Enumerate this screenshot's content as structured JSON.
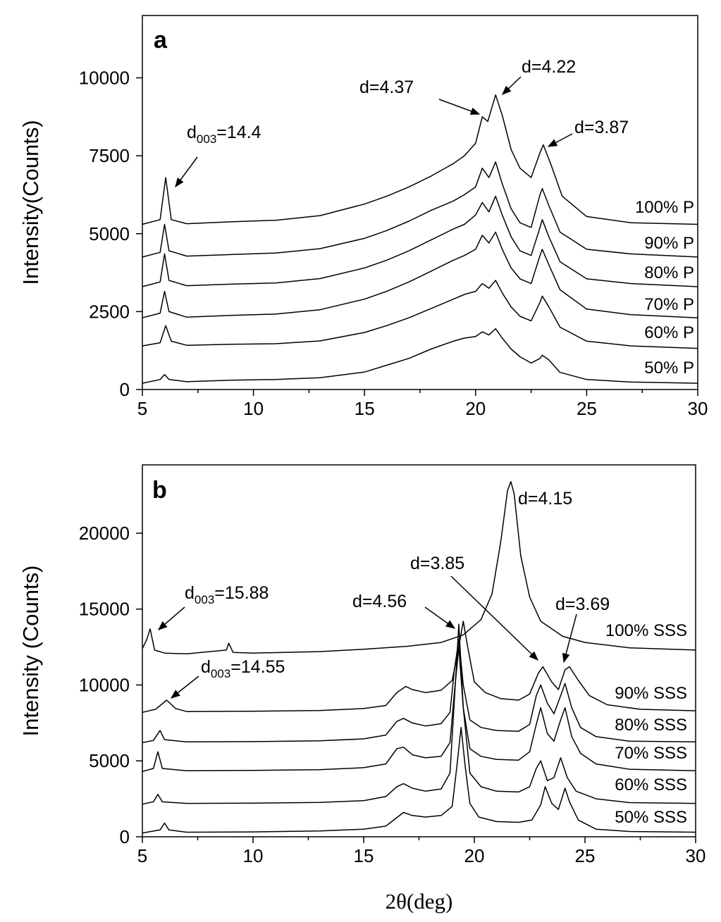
{
  "chart_data": [
    {
      "type": "line",
      "panel_label": "a",
      "ylabel": "Intensity(Counts)",
      "xlabel": "",
      "xlim": [
        5,
        30
      ],
      "ylim": [
        0,
        12000
      ],
      "xticks": [
        "5",
        "10",
        "15",
        "20",
        "25",
        "30"
      ],
      "yticks": [
        "0",
        "2500",
        "5000",
        "7500",
        "10000"
      ],
      "xtick_values": [
        5,
        10,
        15,
        20,
        25,
        30
      ],
      "ytick_values": [
        0,
        2500,
        5000,
        7500,
        10000
      ],
      "series": [
        {
          "name": "50% P",
          "x": [
            5,
            5.8,
            6.0,
            6.2,
            7,
            9,
            11,
            13,
            15,
            16,
            17,
            18,
            19,
            19.5,
            20,
            20.3,
            20.6,
            20.9,
            21.2,
            21.6,
            22,
            22.5,
            22.9,
            23.0,
            23.3,
            23.8,
            25,
            27,
            30
          ],
          "y": [
            200,
            320,
            480,
            320,
            250,
            300,
            320,
            380,
            560,
            780,
            1000,
            1300,
            1550,
            1650,
            1700,
            1850,
            1750,
            1950,
            1650,
            1300,
            1050,
            850,
            1000,
            1100,
            950,
            550,
            320,
            240,
            200
          ]
        },
        {
          "name": "60% P",
          "x": [
            5,
            5.8,
            6.05,
            6.3,
            7,
            9,
            11,
            13,
            15,
            16,
            17,
            18,
            19,
            19.5,
            20,
            20.3,
            20.6,
            20.9,
            21.2,
            21.6,
            22,
            22.5,
            22.9,
            23.0,
            23.3,
            23.8,
            25,
            27,
            30
          ],
          "y": [
            1400,
            1500,
            2050,
            1550,
            1420,
            1450,
            1470,
            1560,
            1830,
            2050,
            2300,
            2600,
            2900,
            3050,
            3150,
            3400,
            3250,
            3500,
            3100,
            2650,
            2350,
            2200,
            2800,
            3000,
            2650,
            2000,
            1550,
            1400,
            1320
          ]
        },
        {
          "name": "70% P",
          "x": [
            5,
            5.8,
            6.0,
            6.2,
            7,
            9,
            11,
            13,
            15,
            16,
            17,
            18,
            19,
            19.5,
            20,
            20.3,
            20.6,
            20.9,
            21.2,
            21.6,
            22,
            22.5,
            22.9,
            23.0,
            23.3,
            23.8,
            25,
            27,
            30
          ],
          "y": [
            2300,
            2450,
            3150,
            2500,
            2320,
            2380,
            2420,
            2560,
            2900,
            3150,
            3450,
            3800,
            4150,
            4300,
            4500,
            4950,
            4700,
            5050,
            4500,
            3900,
            3550,
            3400,
            4300,
            4500,
            4000,
            3200,
            2580,
            2400,
            2300
          ]
        },
        {
          "name": "80% P",
          "x": [
            5,
            5.8,
            6.0,
            6.2,
            7,
            9,
            11,
            13,
            15,
            16,
            17,
            18,
            19,
            19.5,
            20,
            20.3,
            20.6,
            20.9,
            21.2,
            21.6,
            22,
            22.5,
            22.9,
            23.0,
            23.3,
            23.8,
            25,
            27,
            30
          ],
          "y": [
            3300,
            3450,
            4350,
            3500,
            3330,
            3380,
            3420,
            3560,
            3900,
            4150,
            4450,
            4800,
            5150,
            5300,
            5600,
            6000,
            5700,
            6200,
            5600,
            4900,
            4450,
            4300,
            5200,
            5450,
            4900,
            4100,
            3550,
            3400,
            3300
          ]
        },
        {
          "name": "90% P",
          "x": [
            5,
            5.8,
            6.0,
            6.2,
            7,
            9,
            11,
            13,
            15,
            16,
            17,
            18,
            19,
            19.5,
            20,
            20.3,
            20.6,
            20.9,
            21.2,
            21.6,
            22,
            22.5,
            22.9,
            23.0,
            23.3,
            23.8,
            25,
            27,
            30
          ],
          "y": [
            4250,
            4400,
            5300,
            4450,
            4280,
            4330,
            4380,
            4520,
            4850,
            5100,
            5400,
            5750,
            6050,
            6250,
            6500,
            7100,
            6800,
            7300,
            6600,
            5800,
            5350,
            5200,
            6250,
            6450,
            5900,
            5050,
            4500,
            4350,
            4250
          ]
        },
        {
          "name": "100% P",
          "x": [
            5,
            5.8,
            6.05,
            6.3,
            7,
            9,
            11,
            13,
            15,
            16,
            17,
            18,
            19,
            19.5,
            20,
            20.3,
            20.55,
            20.9,
            21.2,
            21.6,
            22,
            22.5,
            22.9,
            23.05,
            23.4,
            23.9,
            25,
            27,
            30
          ],
          "y": [
            5300,
            5450,
            6800,
            5450,
            5320,
            5380,
            5430,
            5580,
            5950,
            6200,
            6500,
            6850,
            7250,
            7500,
            7900,
            8750,
            8600,
            9450,
            8800,
            7700,
            7100,
            6800,
            7600,
            7850,
            7200,
            6200,
            5550,
            5350,
            5300
          ]
        }
      ],
      "annotations": [
        {
          "text": "d",
          "sub": "003",
          "suffix": "=14.4",
          "x": 6.1
        },
        {
          "text": "d=4.37",
          "x": 20.4
        },
        {
          "text": "d=4.22",
          "x": 20.9
        },
        {
          "text": "d=3.87",
          "x": 23.0
        }
      ]
    },
    {
      "type": "line",
      "panel_label": "b",
      "ylabel": "Intensity (Counts)",
      "xlabel": "2θ(deg)",
      "xlim": [
        5,
        30
      ],
      "ylim": [
        0,
        24500
      ],
      "xticks": [
        "5",
        "10",
        "15",
        "20",
        "25",
        "30"
      ],
      "yticks": [
        "0",
        "5000",
        "10000",
        "15000",
        "20000"
      ],
      "xtick_values": [
        5,
        10,
        15,
        20,
        25,
        30
      ],
      "ytick_values": [
        0,
        5000,
        10000,
        15000,
        20000
      ],
      "series": [
        {
          "name": "50% SSS",
          "x": [
            5,
            5.8,
            6.0,
            6.2,
            7,
            10,
            13,
            15,
            16,
            16.8,
            17.2,
            17.8,
            18.5,
            19.0,
            19.2,
            19.4,
            19.6,
            19.8,
            20.2,
            21,
            22,
            22.6,
            23.0,
            23.2,
            23.5,
            23.8,
            24.1,
            24.3,
            24.7,
            25.5,
            27,
            30
          ],
          "y": [
            250,
            450,
            900,
            450,
            300,
            320,
            380,
            500,
            700,
            1600,
            1400,
            1300,
            1400,
            2000,
            4500,
            7200,
            4500,
            2200,
            1300,
            1000,
            950,
            1100,
            2100,
            3300,
            2200,
            1800,
            3200,
            2300,
            1100,
            500,
            350,
            300
          ]
        },
        {
          "name": "60% SSS",
          "x": [
            5,
            5.5,
            5.7,
            5.9,
            7,
            10,
            13,
            15,
            16,
            16.5,
            16.8,
            17.2,
            17.8,
            18.5,
            18.9,
            19.1,
            19.3,
            19.5,
            19.8,
            20.3,
            21,
            22,
            22.5,
            22.8,
            23.0,
            23.3,
            23.6,
            23.9,
            24.2,
            24.6,
            25.5,
            27,
            30
          ],
          "y": [
            2150,
            2300,
            2800,
            2300,
            2200,
            2220,
            2260,
            2380,
            2650,
            3300,
            3500,
            3200,
            3000,
            3150,
            4200,
            9000,
            14000,
            8500,
            4200,
            3300,
            3000,
            2950,
            3300,
            4500,
            5000,
            3700,
            3900,
            5200,
            3900,
            3000,
            2500,
            2250,
            2200
          ]
        },
        {
          "name": "70% SSS",
          "x": [
            5,
            5.5,
            5.7,
            5.9,
            7,
            10,
            13,
            15,
            16,
            16.5,
            16.8,
            17.2,
            17.8,
            18.5,
            18.9,
            19.1,
            19.3,
            19.5,
            19.8,
            20.3,
            21,
            22,
            22.5,
            22.8,
            23.0,
            23.3,
            23.6,
            23.9,
            24.1,
            24.4,
            24.8,
            25.5,
            27,
            30
          ],
          "y": [
            4300,
            4500,
            5600,
            4500,
            4350,
            4370,
            4420,
            4550,
            4800,
            5800,
            5900,
            5400,
            5200,
            5300,
            6200,
            9500,
            12500,
            8500,
            5800,
            5300,
            5100,
            5050,
            5600,
            7400,
            8500,
            6800,
            6300,
            7700,
            8500,
            6600,
            5500,
            4800,
            4450,
            4350
          ]
        },
        {
          "name": "80% SSS",
          "x": [
            5,
            5.5,
            5.8,
            6.0,
            7,
            10,
            13,
            15,
            16,
            16.5,
            16.8,
            17.2,
            17.8,
            18.5,
            18.9,
            19.1,
            19.3,
            19.5,
            19.8,
            20.3,
            21,
            22,
            22.5,
            22.8,
            23.0,
            23.3,
            23.6,
            23.9,
            24.1,
            24.4,
            24.8,
            25.5,
            27,
            30
          ],
          "y": [
            6200,
            6350,
            7000,
            6400,
            6250,
            6270,
            6320,
            6450,
            6700,
            7600,
            7800,
            7500,
            7300,
            7450,
            8200,
            11000,
            13000,
            10000,
            7700,
            7200,
            7000,
            6950,
            7400,
            9300,
            10000,
            8800,
            8100,
            9300,
            10100,
            8500,
            7200,
            6600,
            6300,
            6250
          ]
        },
        {
          "name": "90% SSS",
          "x": [
            5,
            5.6,
            6.1,
            6.5,
            7,
            10,
            13,
            15,
            16,
            16.5,
            16.9,
            17.2,
            17.8,
            18.5,
            19.0,
            19.3,
            19.5,
            19.7,
            20.0,
            20.5,
            21.2,
            22,
            22.5,
            22.9,
            23.1,
            23.5,
            23.8,
            24.1,
            24.3,
            24.7,
            25.2,
            26,
            27.5,
            30
          ],
          "y": [
            8200,
            8400,
            9000,
            8450,
            8250,
            8270,
            8320,
            8450,
            8650,
            9500,
            9900,
            9700,
            9500,
            9650,
            10300,
            12500,
            14200,
            12500,
            10200,
            9500,
            9100,
            9000,
            9400,
            10800,
            11200,
            10200,
            9700,
            11000,
            11200,
            10300,
            9300,
            8700,
            8400,
            8300
          ]
        },
        {
          "name": "100% SSS",
          "x": [
            5,
            5.2,
            5.35,
            5.55,
            6,
            7,
            8.8,
            8.9,
            9.1,
            10,
            13,
            15,
            17,
            18.5,
            19.5,
            20.3,
            20.8,
            21.2,
            21.5,
            21.65,
            21.8,
            22.1,
            22.5,
            23,
            24,
            25,
            27,
            30
          ],
          "y": [
            12400,
            13000,
            13700,
            12300,
            12100,
            12050,
            12300,
            12750,
            12150,
            12100,
            12200,
            12350,
            12550,
            12800,
            13300,
            14300,
            16000,
            19500,
            22800,
            23400,
            22600,
            18500,
            15800,
            14200,
            13200,
            12800,
            12450,
            12300
          ]
        }
      ],
      "annotations": [
        {
          "text": "d",
          "sub": "003",
          "suffix": "=15.88",
          "x": 5.35
        },
        {
          "text": "d",
          "sub": "003",
          "suffix": "=14.55",
          "x": 6.1
        },
        {
          "text": "d=4.56",
          "x": 19.3
        },
        {
          "text": "d=3.85",
          "x": 23.1
        },
        {
          "text": "d=4.15",
          "x": 21.6
        },
        {
          "text": "d=3.69",
          "x": 24.1
        }
      ]
    }
  ]
}
